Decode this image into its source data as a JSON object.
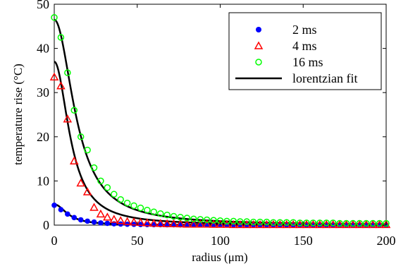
{
  "chart_data": {
    "type": "scatter",
    "xlabel": "radius (μm)",
    "ylabel": "temperature rise (°C)",
    "xlim": [
      0,
      200
    ],
    "ylim": [
      0,
      50
    ],
    "xticks": [
      0,
      50,
      100,
      150,
      200
    ],
    "yticks": [
      0,
      10,
      20,
      30,
      40,
      50
    ],
    "grid": false,
    "legend_position": "top-right",
    "x": [
      0,
      4,
      8,
      12,
      16,
      20,
      24,
      28,
      32,
      36,
      40,
      44,
      48,
      52,
      56,
      60,
      64,
      68,
      72,
      76,
      80,
      84,
      88,
      92,
      96,
      100,
      104,
      108,
      112,
      116,
      120,
      124,
      128,
      132,
      136,
      140,
      144,
      148,
      152,
      156,
      160,
      164,
      168,
      172,
      176,
      180,
      184,
      188,
      192,
      196,
      200
    ],
    "series": [
      {
        "name": "2 ms",
        "marker": "filled-circle",
        "color": "#0000ff",
        "values": [
          4.5,
          3.5,
          2.5,
          1.7,
          1.2,
          0.9,
          0.7,
          0.5,
          0.4,
          0.3,
          0.25,
          0.2,
          0.18,
          0.15,
          0.12,
          0.1,
          0.1,
          0.08,
          0.08,
          0.07,
          0.06,
          0.06,
          0.05,
          0.05,
          0.05,
          0.04,
          0.04,
          0.04,
          0.04,
          0.03,
          0.03,
          0.03,
          0.03,
          0.03,
          0.03,
          0.02,
          0.02,
          0.02,
          0.02,
          0.02,
          0.02,
          0.02,
          0.02,
          0.02,
          0.02,
          0.02,
          0.02,
          0.02,
          0.02,
          0.02,
          0.02
        ]
      },
      {
        "name": "4 ms",
        "marker": "open-triangle",
        "color": "#ff0000",
        "values": [
          33.5,
          31.5,
          24,
          14.5,
          9.5,
          7.5,
          4,
          2.5,
          1.8,
          1.3,
          1.0,
          0.8,
          0.7,
          0.6,
          0.5,
          0.4,
          0.35,
          0.3,
          0.3,
          0.25,
          0.2,
          0.2,
          0.2,
          0.2,
          0.15,
          0.15,
          0.15,
          0.1,
          0.1,
          0.1,
          0.1,
          0.1,
          0.1,
          0.1,
          0.1,
          0.1,
          0.1,
          0.1,
          0.1,
          0.1,
          0.1,
          0.1,
          0.1,
          0.1,
          0.1,
          0.1,
          0.1,
          0.1,
          0.1,
          0.1,
          0.1
        ]
      },
      {
        "name": "16 ms",
        "marker": "open-circle",
        "color": "#00ff00",
        "values": [
          47,
          42.5,
          34.5,
          26,
          20,
          17,
          13,
          10,
          8.5,
          7,
          5.8,
          5,
          4.4,
          3.9,
          3.4,
          3.0,
          2.6,
          2.3,
          2.0,
          1.8,
          1.6,
          1.4,
          1.3,
          1.2,
          1.1,
          1.0,
          0.9,
          0.9,
          0.8,
          0.8,
          0.7,
          0.7,
          0.7,
          0.6,
          0.6,
          0.6,
          0.6,
          0.5,
          0.5,
          0.5,
          0.5,
          0.5,
          0.5,
          0.4,
          0.4,
          0.4,
          0.4,
          0.4,
          0.4,
          0.4,
          0.4
        ]
      },
      {
        "name": "lorentzian fit",
        "marker": "line",
        "color": "#000000",
        "type": "line",
        "fits": [
          {
            "amplitude": 37.0,
            "width": 10.5
          },
          {
            "amplitude": 46.5,
            "width": 14.0
          },
          {
            "amplitude": 4.7,
            "width": 9.0
          }
        ]
      }
    ]
  }
}
